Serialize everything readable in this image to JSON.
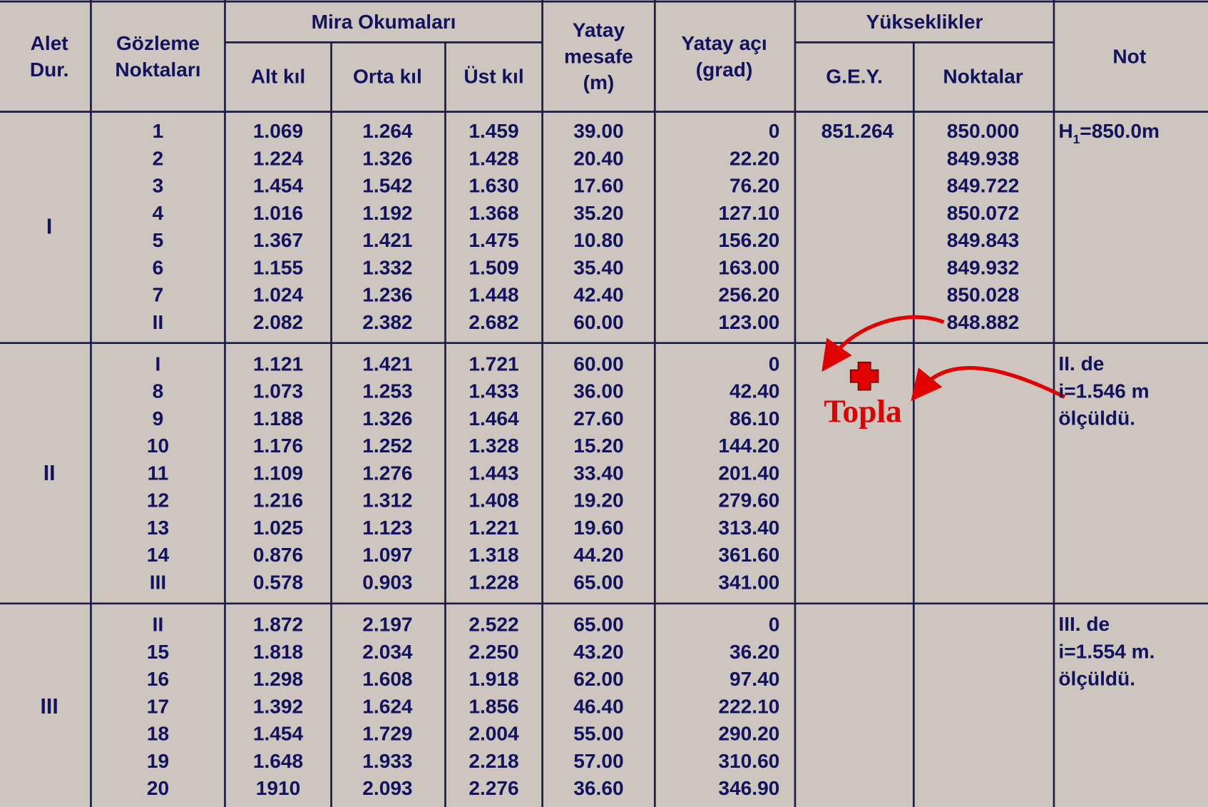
{
  "header": {
    "alet": [
      "Alet",
      "Dur."
    ],
    "gozleme": [
      "Gözleme",
      "Noktaları"
    ],
    "mira": "Mira Okumaları",
    "alt": "Alt kıl",
    "orta": "Orta kıl",
    "ust": "Üst kıl",
    "mesafe": [
      "Yatay",
      "mesafe",
      "(m)"
    ],
    "aci": [
      "Yatay açı",
      "(grad)"
    ],
    "yukseklikler": "Yükseklikler",
    "gey": "G.E.Y.",
    "noktalar": "Noktalar",
    "not": "Not"
  },
  "groups": [
    {
      "station": "I",
      "rows": [
        [
          "1",
          "1.069",
          "1.264",
          "1.459",
          "39.00",
          "0",
          "851.264",
          "850.000"
        ],
        [
          "2",
          "1.224",
          "1.326",
          "1.428",
          "20.40",
          "22.20",
          null,
          "849.938"
        ],
        [
          "3",
          "1.454",
          "1.542",
          "1.630",
          "17.60",
          "76.20",
          null,
          "849.722"
        ],
        [
          "4",
          "1.016",
          "1.192",
          "1.368",
          "35.20",
          "127.10",
          null,
          "850.072"
        ],
        [
          "5",
          "1.367",
          "1.421",
          "1.475",
          "10.80",
          "156.20",
          null,
          "849.843"
        ],
        [
          "6",
          "1.155",
          "1.332",
          "1.509",
          "35.40",
          "163.00",
          null,
          "849.932"
        ],
        [
          "7",
          "1.024",
          "1.236",
          "1.448",
          "42.40",
          "256.20",
          null,
          "850.028"
        ],
        [
          "II",
          "2.082",
          "2.382",
          "2.682",
          "60.00",
          "123.00",
          null,
          "848.882"
        ]
      ],
      "note": [
        [
          "H",
          "1",
          "=850.0m"
        ]
      ]
    },
    {
      "station": "II",
      "rows": [
        [
          "I",
          "1.121",
          "1.421",
          "1.721",
          "60.00",
          "0",
          null,
          null
        ],
        [
          "8",
          "1.073",
          "1.253",
          "1.433",
          "36.00",
          "42.40",
          null,
          null
        ],
        [
          "9",
          "1.188",
          "1.326",
          "1.464",
          "27.60",
          "86.10",
          null,
          null
        ],
        [
          "10",
          "1.176",
          "1.252",
          "1.328",
          "15.20",
          "144.20",
          null,
          null
        ],
        [
          "11",
          "1.109",
          "1.276",
          "1.443",
          "33.40",
          "201.40",
          null,
          null
        ],
        [
          "12",
          "1.216",
          "1.312",
          "1.408",
          "19.20",
          "279.60",
          null,
          null
        ],
        [
          "13",
          "1.025",
          "1.123",
          "1.221",
          "19.60",
          "313.40",
          null,
          null
        ],
        [
          "14",
          "0.876",
          "1.097",
          "1.318",
          "44.20",
          "361.60",
          null,
          null
        ],
        [
          "III",
          "0.578",
          "0.903",
          "1.228",
          "65.00",
          "341.00",
          null,
          null
        ]
      ],
      "note": [
        [
          "II. de"
        ],
        [
          "i=1.546 m"
        ],
        [
          "ölçüldü."
        ]
      ]
    },
    {
      "station": "III",
      "rows": [
        [
          "II",
          "1.872",
          "2.197",
          "2.522",
          "65.00",
          "0",
          null,
          null
        ],
        [
          "15",
          "1.818",
          "2.034",
          "2.250",
          "43.20",
          "36.20",
          null,
          null
        ],
        [
          "16",
          "1.298",
          "1.608",
          "1.918",
          "62.00",
          "97.40",
          null,
          null
        ],
        [
          "17",
          "1.392",
          "1.624",
          "1.856",
          "46.40",
          "222.10",
          null,
          null
        ],
        [
          "18",
          "1.454",
          "1.729",
          "2.004",
          "55.00",
          "290.20",
          null,
          null
        ],
        [
          "19",
          "1.648",
          "1.933",
          "2.218",
          "57.00",
          "310.60",
          null,
          null
        ],
        [
          "20",
          "1910",
          "2.093",
          "2.276",
          "36.60",
          "346.90",
          null,
          null
        ]
      ],
      "note": [
        [
          "III. de"
        ],
        [
          "i=1.554 m."
        ],
        [
          "ölçüldü."
        ]
      ]
    }
  ],
  "annotation": "Topla"
}
